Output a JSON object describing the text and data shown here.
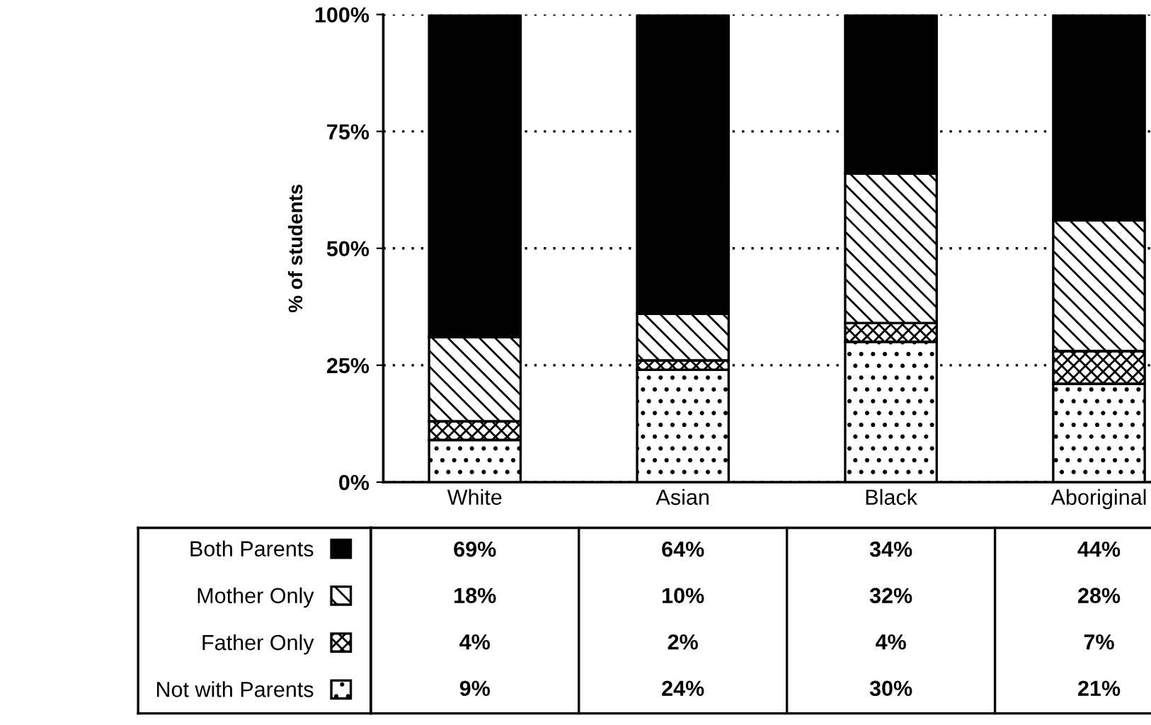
{
  "chart_data": {
    "type": "bar",
    "stacked": true,
    "ylabel": "% of students",
    "categories": [
      "White",
      "Asian",
      "Black",
      "Aboriginal"
    ],
    "series": [
      {
        "name": "Not with Parents",
        "color": "#ffffff",
        "values": [
          9,
          24,
          30,
          21
        ],
        "value_labels": [
          "9%",
          "24%",
          "30%",
          "21%"
        ]
      },
      {
        "name": "Father Only",
        "color": "#ffffff",
        "values": [
          4,
          2,
          4,
          7
        ],
        "value_labels": [
          "4%",
          "2%",
          "4%",
          "7%"
        ]
      },
      {
        "name": "Mother Only",
        "color": "#ffffff",
        "values": [
          18,
          10,
          32,
          28
        ],
        "value_labels": [
          "18%",
          "10%",
          "32%",
          "28%"
        ]
      },
      {
        "name": "Both Parents",
        "color": "#000000",
        "values": [
          69,
          64,
          34,
          44
        ],
        "value_labels": [
          "69%",
          "64%",
          "34%",
          "44%"
        ]
      }
    ],
    "ylim": [
      0,
      100
    ],
    "yticks": [
      {
        "value": 0,
        "label": "0%"
      },
      {
        "value": 25,
        "label": "25%"
      },
      {
        "value": 50,
        "label": "50%"
      },
      {
        "value": 75,
        "label": "75%"
      },
      {
        "value": 100,
        "label": "100%"
      }
    ],
    "grid": "y",
    "legend": "bottom left"
  }
}
